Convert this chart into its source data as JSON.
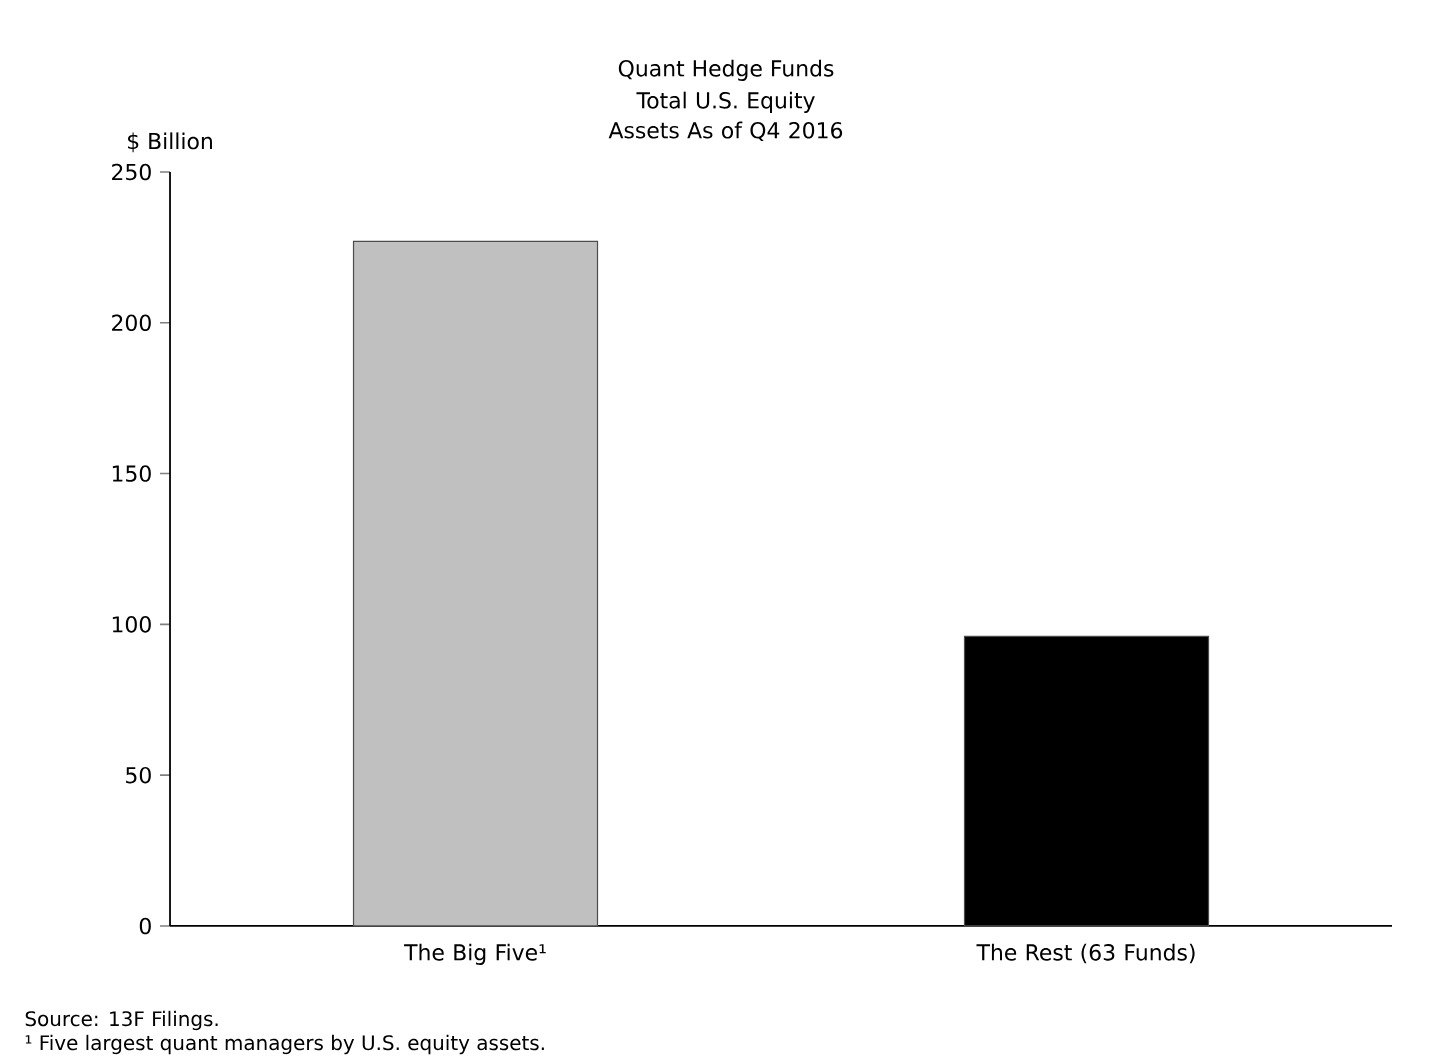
{
  "chart_data": {
    "type": "bar",
    "title": "Quant Hedge Funds",
    "subtitle": "Total U.S. Equity Assets As of Q4 2016",
    "ylabel": "$ Billion",
    "categories": [
      "The Big Five¹",
      "The Rest (63 Funds)"
    ],
    "values": [
      227,
      96
    ],
    "colors": [
      "#c0c0c0",
      "#000000"
    ],
    "ylim": [
      0,
      250
    ],
    "yticks": [
      0,
      50,
      100,
      150,
      200,
      250
    ],
    "grid": false,
    "annotations": [
      "Source: 13F Filings.",
      "¹ Five largest quant managers by U.S. equity assets."
    ]
  }
}
